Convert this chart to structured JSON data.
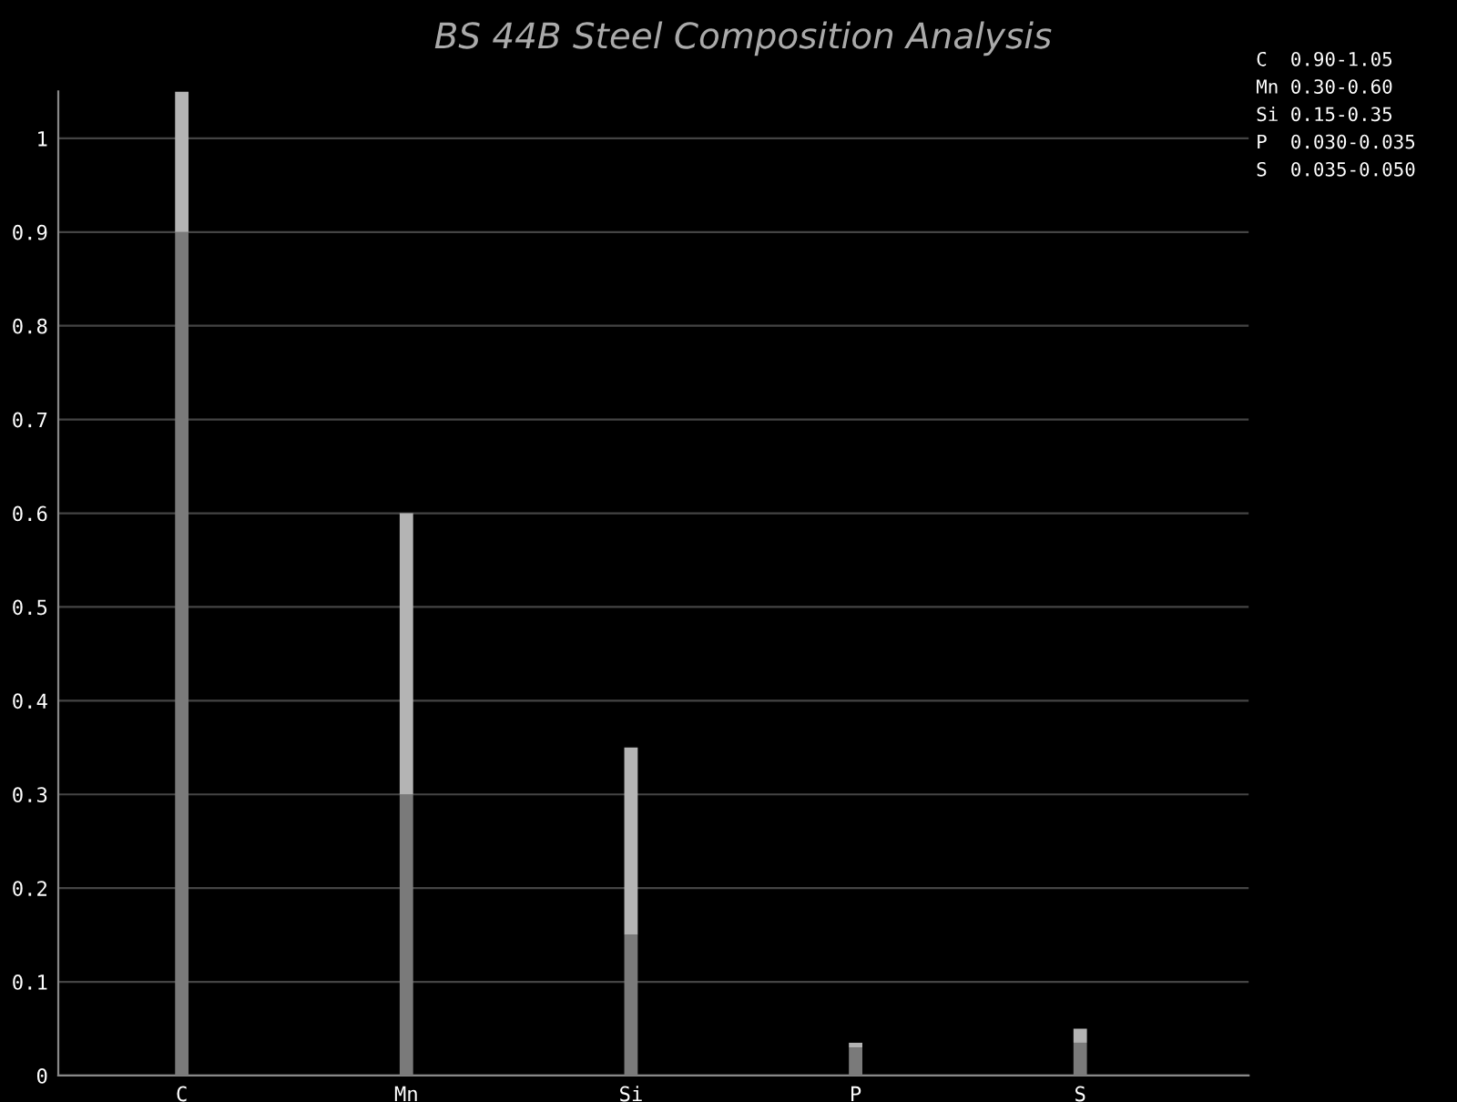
{
  "chart_data": {
    "type": "bar",
    "title": "BS 44B Steel Composition Analysis",
    "stacked": true,
    "categories": [
      "C",
      "Mn",
      "Si",
      "P",
      "S"
    ],
    "series": [
      {
        "color": "#7a7a7a",
        "values": [
          0.9,
          0.3,
          0.15,
          0.03,
          0.035
        ]
      },
      {
        "color": "#b4b4b4",
        "values": [
          0.15,
          0.3,
          0.2,
          0.005,
          0.015
        ]
      }
    ],
    "ylim": [
      0,
      1.05
    ],
    "yticks": [
      0,
      0.1,
      0.2,
      0.3,
      0.4,
      0.5,
      0.6,
      0.7,
      0.8,
      0.9,
      1
    ],
    "grid": "y",
    "legend": false,
    "annotations": [
      "C  0.90-1.05",
      "Mn 0.30-0.60",
      "Si 0.15-0.35",
      "P  0.030-0.035",
      "S  0.035-0.050"
    ]
  }
}
